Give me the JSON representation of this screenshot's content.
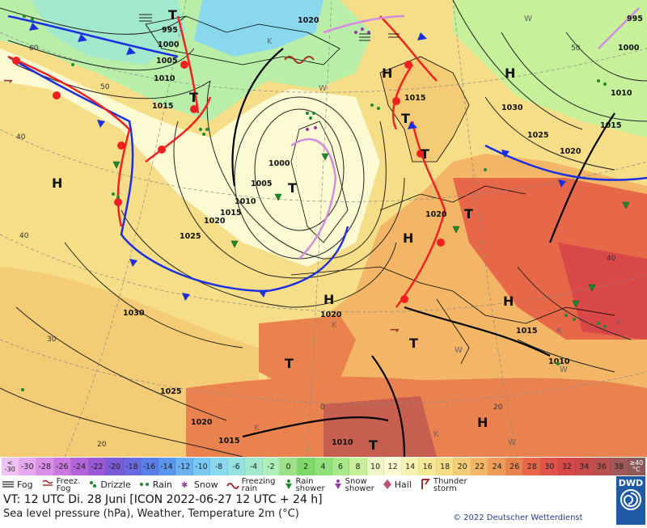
{
  "map": {
    "isobars": [
      "995",
      "1000",
      "1005",
      "1010",
      "1015",
      "1020",
      "1025",
      "1030"
    ],
    "pressure_centers": [
      "H",
      "T",
      "K",
      "W"
    ],
    "lat_labels": [
      "60",
      "50",
      "40",
      "30",
      "20",
      "0"
    ],
    "land_color": "#f0b070",
    "sea_color": "#f8e68a",
    "cold_front_color": "#1a2fe0",
    "warm_front_color": "#f22020",
    "occluded_front_color": "#d48ae0"
  },
  "labels": {
    "isobar_995": "995",
    "isobar_1000": "1000",
    "isobar_1005": "1005",
    "isobar_1010": "1010",
    "isobar_1015": "1015",
    "isobar_1020": "1020",
    "isobar_1025": "1025",
    "isobar_1030": "1030",
    "high": "H",
    "low": "T",
    "cold": "K",
    "warm": "W",
    "lat60": "60",
    "lat50": "50",
    "lat40": "40",
    "lat30": "30",
    "lat20": "20",
    "lat0": "0"
  },
  "temperature_scale": {
    "unit": "°C",
    "below_label": "<\n-30",
    "above_label": "≥40\n°C",
    "values": [
      "-30",
      "-28",
      "-26",
      "-24",
      "-22",
      "-20",
      "-18",
      "-16",
      "-14",
      "-12",
      "-10",
      "-8",
      "-6",
      "-4",
      "-2",
      "0",
      "2",
      "4",
      "6",
      "8",
      "10",
      "12",
      "14",
      "16",
      "18",
      "20",
      "22",
      "24",
      "26",
      "28",
      "30",
      "32",
      "34",
      "36",
      "38"
    ],
    "colors": [
      "#e6a8ee",
      "#d98fe8",
      "#c978e0",
      "#b364d8",
      "#9a58d4",
      "#7a5ad6",
      "#6a6ae0",
      "#5a7ee8",
      "#5a96ee",
      "#6ab2f2",
      "#7ac8f4",
      "#8ad8ee",
      "#96e2e0",
      "#a2e8cc",
      "#aeeeb8",
      "#9ee08a",
      "#7ed86a",
      "#8ee07a",
      "#a8e88a",
      "#c6f09a",
      "#eef6c6",
      "#fcfad2",
      "#f8f2b0",
      "#f6ea98",
      "#f6de88",
      "#f4cc76",
      "#f2b666",
      "#ee9c58",
      "#ea8250",
      "#e66848",
      "#e0524a",
      "#d84848",
      "#c84a4a",
      "#b85050",
      "#a05858"
    ]
  },
  "weather_legend": [
    {
      "icon": "fog-icon",
      "label": "Fog"
    },
    {
      "icon": "freezing-fog-icon",
      "label": "Freez.\nFog"
    },
    {
      "icon": "drizzle-icon",
      "label": "Drizzle"
    },
    {
      "icon": "rain-icon",
      "label": "Rain"
    },
    {
      "icon": "snow-icon",
      "label": "Snow"
    },
    {
      "icon": "freezing-rain-icon",
      "label": "Freezing\nrain"
    },
    {
      "icon": "rain-shower-icon",
      "label": "Rain\nshower"
    },
    {
      "icon": "snow-shower-icon",
      "label": "Snow\nshower"
    },
    {
      "icon": "hail-icon",
      "label": "Hail"
    },
    {
      "icon": "thunderstorm-icon",
      "label": "Thunder\nstorm"
    }
  ],
  "info": {
    "valid_time": "VT: 12 UTC Di.  28 Juni [ICON 2022-06-27  12 UTC + 24 h]",
    "description": "Sea level pressure (hPa), Weather, Temperature 2m (°C)",
    "copyright": "© 2022 Deutscher Wetterdienst",
    "brand": "DWD"
  }
}
